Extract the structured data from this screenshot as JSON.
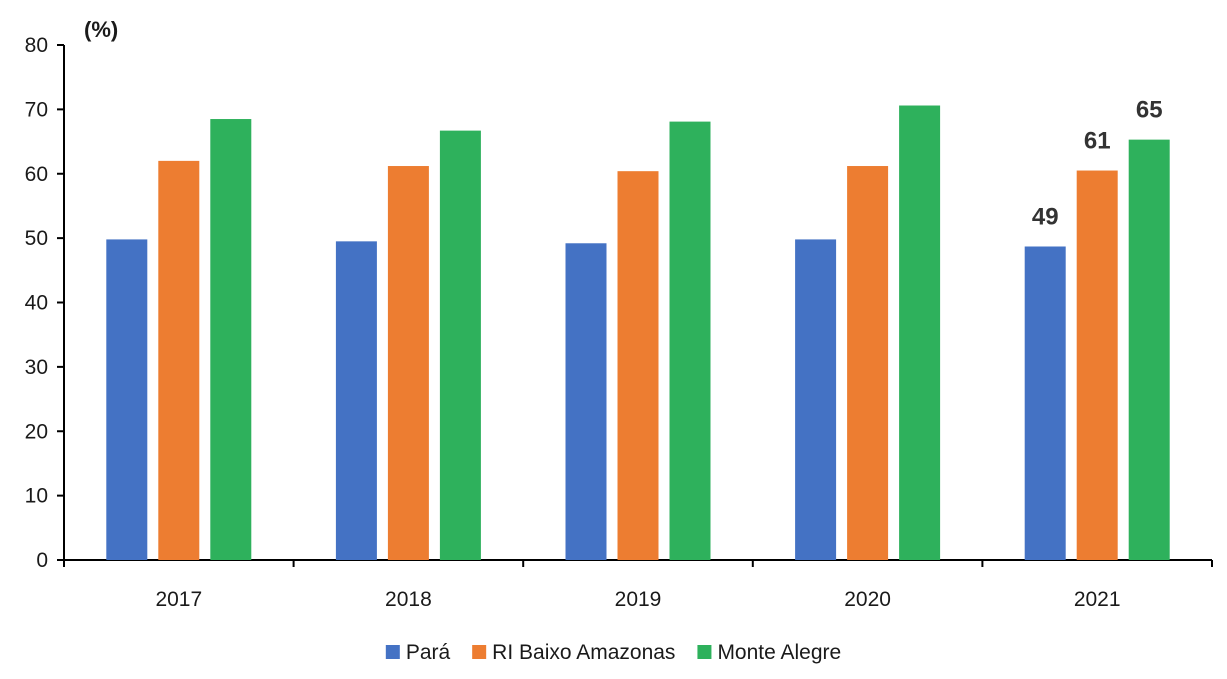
{
  "chart_data": {
    "type": "bar",
    "title": "",
    "xlabel": "",
    "ylabel": "",
    "unit_label": "(%)",
    "ylim": [
      0,
      80
    ],
    "yticks": [
      0,
      10,
      20,
      30,
      40,
      50,
      60,
      70,
      80
    ],
    "categories": [
      "2017",
      "2018",
      "2019",
      "2020",
      "2021"
    ],
    "series": [
      {
        "name": "Pará",
        "color": "#4472C4",
        "values": [
          49.8,
          49.5,
          49.2,
          49.8,
          48.7
        ]
      },
      {
        "name": "RI Baixo Amazonas",
        "color": "#ED7D31",
        "values": [
          62.0,
          61.2,
          60.4,
          61.2,
          60.5
        ]
      },
      {
        "name": "Monte Alegre",
        "color": "#2EB15C",
        "values": [
          68.5,
          66.7,
          68.1,
          70.6,
          65.3
        ]
      }
    ],
    "data_labels": [
      {
        "category": "2021",
        "series": "Pará",
        "text": "49"
      },
      {
        "category": "2021",
        "series": "RI Baixo Amazonas",
        "text": "61"
      },
      {
        "category": "2021",
        "series": "Monte Alegre",
        "text": "65"
      }
    ],
    "grid": false,
    "legend_position": "bottom"
  }
}
